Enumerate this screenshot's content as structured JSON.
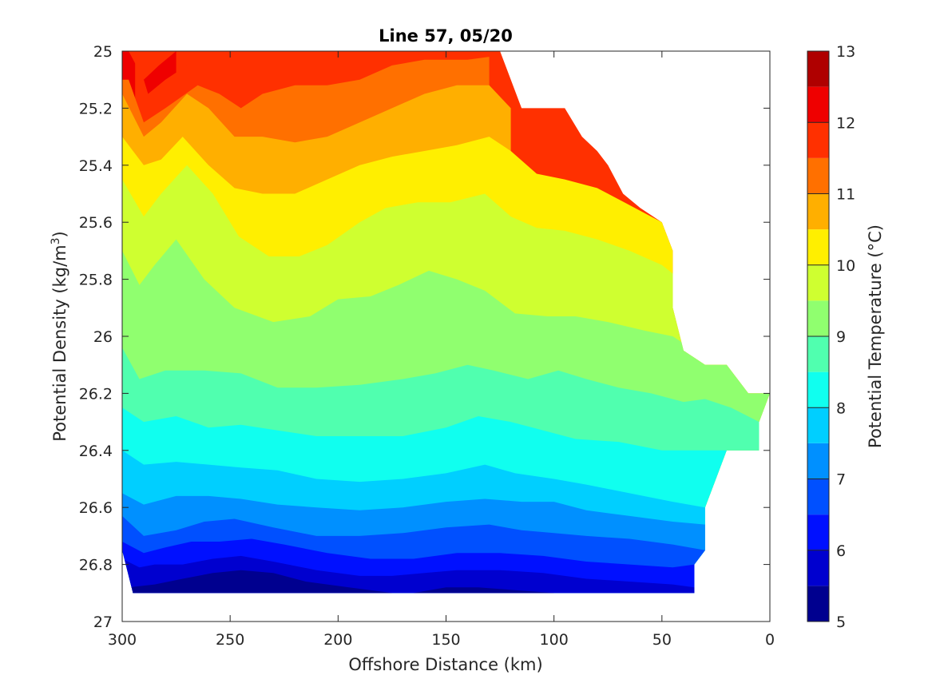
{
  "chart_data": {
    "type": "contour",
    "title": "Line 57, 05/20",
    "xlabel": "Offshore Distance (km)",
    "ylabel_main": "Potential Density (kg/m",
    "ylabel_sup": "3",
    "ylabel_end": ")",
    "xlim": [
      300,
      0
    ],
    "x_reversed": true,
    "ylim": [
      25,
      27
    ],
    "y_reversed": true,
    "x_ticks": [
      300,
      250,
      200,
      150,
      100,
      50,
      0
    ],
    "x_tick_labels": [
      "300",
      "250",
      "200",
      "150",
      "100",
      "50",
      "0"
    ],
    "y_ticks": [
      25,
      25.2,
      25.4,
      25.6,
      25.8,
      26,
      26.2,
      26.4,
      26.6,
      26.8,
      27
    ],
    "y_tick_labels": [
      "25",
      "25.2",
      "25.4",
      "25.6",
      "25.8",
      "26",
      "26.2",
      "26.4",
      "26.6",
      "26.8",
      "27"
    ],
    "colorbar": {
      "label": "Potential Temperature (°C)",
      "limits": [
        5,
        13
      ],
      "tick_values": [
        5,
        6,
        7,
        8,
        9,
        10,
        11,
        12,
        13
      ],
      "tick_labels": [
        "5",
        "6",
        "7",
        "8",
        "9",
        "10",
        "11",
        "12",
        "13"
      ],
      "levels": [
        5,
        5.5,
        6,
        6.5,
        7,
        7.5,
        8,
        8.5,
        9,
        9.5,
        10,
        10.5,
        11,
        11.5,
        12,
        12.5,
        13
      ],
      "colors": [
        "#00008f",
        "#0000cf",
        "#0010ff",
        "#0050ff",
        "#0090ff",
        "#00cfff",
        "#10ffef",
        "#50ffaf",
        "#90ff6f",
        "#cfff30",
        "#ffef00",
        "#ffaf00",
        "#ff7000",
        "#ff3000",
        "#ef0000",
        "#af0000"
      ]
    },
    "data_domain": {
      "x_range": [
        300,
        0
      ],
      "bottom_density": 26.9,
      "top_edge": [
        [
          300,
          25
        ],
        [
          125,
          25
        ],
        [
          115,
          25.2
        ],
        [
          95,
          25.2
        ],
        [
          87,
          25.3
        ],
        [
          80,
          25.35
        ],
        [
          75,
          25.4
        ],
        [
          68,
          25.5
        ],
        [
          60,
          25.55
        ],
        [
          50,
          25.6
        ],
        [
          45,
          25.7
        ],
        [
          45,
          25.9
        ],
        [
          40,
          26.05
        ],
        [
          30,
          26.1
        ],
        [
          20,
          26.1
        ],
        [
          10,
          26.2
        ],
        [
          0,
          26.2
        ]
      ],
      "right_edge": [
        [
          0,
          26.2
        ],
        [
          5,
          26.3
        ],
        [
          5,
          26.4
        ],
        [
          20,
          26.4
        ],
        [
          30,
          26.6
        ],
        [
          30,
          26.75
        ],
        [
          35,
          26.8
        ],
        [
          35,
          26.9
        ]
      ],
      "left_edge": [
        [
          295,
          26.9
        ],
        [
          300,
          26.75
        ],
        [
          300,
          25
        ]
      ]
    },
    "isotherms": [
      {
        "level": 12.5,
        "points": [
          [
            297,
            25
          ],
          [
            290,
            25.1
          ],
          [
            283,
            25.05
          ],
          [
            275,
            25
          ]
        ]
      },
      {
        "level": 12,
        "points": [
          [
            294,
            25
          ],
          [
            288,
            25.15
          ],
          [
            280,
            25.1
          ],
          [
            270,
            25.05
          ],
          [
            255,
            25.05
          ],
          [
            240,
            25.05
          ],
          [
            220,
            25.05
          ],
          [
            200,
            25.04
          ],
          [
            180,
            25.02
          ],
          [
            160,
            25.0
          ]
        ]
      },
      {
        "level": 11.5,
        "points": [
          [
            297,
            25.1
          ],
          [
            290,
            25.25
          ],
          [
            280,
            25.2
          ],
          [
            265,
            25.12
          ],
          [
            255,
            25.15
          ],
          [
            245,
            25.2
          ],
          [
            235,
            25.15
          ],
          [
            220,
            25.12
          ],
          [
            205,
            25.12
          ],
          [
            190,
            25.1
          ],
          [
            175,
            25.05
          ],
          [
            160,
            25.03
          ],
          [
            140,
            25.03
          ],
          [
            130,
            25.02
          ]
        ]
      },
      {
        "level": 11,
        "points": [
          [
            300,
            25.15
          ],
          [
            290,
            25.3
          ],
          [
            282,
            25.25
          ],
          [
            270,
            25.15
          ],
          [
            260,
            25.2
          ],
          [
            248,
            25.3
          ],
          [
            235,
            25.3
          ],
          [
            220,
            25.32
          ],
          [
            205,
            25.3
          ],
          [
            190,
            25.25
          ],
          [
            175,
            25.2
          ],
          [
            160,
            25.15
          ],
          [
            145,
            25.12
          ],
          [
            130,
            25.12
          ],
          [
            120,
            25.2
          ]
        ]
      },
      {
        "level": 10.5,
        "points": [
          [
            300,
            25.3
          ],
          [
            290,
            25.4
          ],
          [
            282,
            25.38
          ],
          [
            272,
            25.3
          ],
          [
            260,
            25.4
          ],
          [
            248,
            25.48
          ],
          [
            235,
            25.5
          ],
          [
            220,
            25.5
          ],
          [
            205,
            25.45
          ],
          [
            190,
            25.4
          ],
          [
            175,
            25.37
          ],
          [
            160,
            25.35
          ],
          [
            145,
            25.33
          ],
          [
            130,
            25.3
          ],
          [
            120,
            25.35
          ],
          [
            108,
            25.43
          ],
          [
            95,
            25.45
          ],
          [
            80,
            25.48
          ],
          [
            70,
            25.52
          ],
          [
            55,
            25.58
          ],
          [
            45,
            25.62
          ]
        ]
      },
      {
        "level": 10,
        "points": [
          [
            300,
            25.45
          ],
          [
            290,
            25.58
          ],
          [
            282,
            25.5
          ],
          [
            270,
            25.4
          ],
          [
            258,
            25.5
          ],
          [
            246,
            25.65
          ],
          [
            232,
            25.72
          ],
          [
            218,
            25.72
          ],
          [
            205,
            25.68
          ],
          [
            190,
            25.6
          ],
          [
            178,
            25.55
          ],
          [
            163,
            25.53
          ],
          [
            148,
            25.53
          ],
          [
            132,
            25.5
          ],
          [
            120,
            25.58
          ],
          [
            108,
            25.62
          ],
          [
            95,
            25.63
          ],
          [
            80,
            25.66
          ],
          [
            65,
            25.7
          ],
          [
            50,
            25.75
          ],
          [
            45,
            25.78
          ]
        ]
      },
      {
        "level": 9.5,
        "points": [
          [
            300,
            25.7
          ],
          [
            292,
            25.82
          ],
          [
            285,
            25.75
          ],
          [
            275,
            25.66
          ],
          [
            262,
            25.8
          ],
          [
            248,
            25.9
          ],
          [
            230,
            25.95
          ],
          [
            213,
            25.93
          ],
          [
            200,
            25.87
          ],
          [
            185,
            25.86
          ],
          [
            172,
            25.82
          ],
          [
            158,
            25.77
          ],
          [
            145,
            25.8
          ],
          [
            132,
            25.84
          ],
          [
            118,
            25.92
          ],
          [
            103,
            25.93
          ],
          [
            90,
            25.93
          ],
          [
            75,
            25.95
          ],
          [
            58,
            25.98
          ],
          [
            45,
            26.0
          ],
          [
            35,
            26.05
          ]
        ]
      },
      {
        "level": 9,
        "points": [
          [
            300,
            26.04
          ],
          [
            292,
            26.15
          ],
          [
            280,
            26.12
          ],
          [
            262,
            26.12
          ],
          [
            245,
            26.13
          ],
          [
            228,
            26.18
          ],
          [
            210,
            26.18
          ],
          [
            190,
            26.17
          ],
          [
            170,
            26.15
          ],
          [
            155,
            26.13
          ],
          [
            140,
            26.1
          ],
          [
            128,
            26.12
          ],
          [
            112,
            26.15
          ],
          [
            98,
            26.12
          ],
          [
            85,
            26.15
          ],
          [
            70,
            26.18
          ],
          [
            55,
            26.2
          ],
          [
            40,
            26.23
          ],
          [
            30,
            26.22
          ],
          [
            18,
            26.25
          ],
          [
            5,
            26.3
          ]
        ]
      },
      {
        "level": 8.5,
        "points": [
          [
            300,
            26.25
          ],
          [
            290,
            26.3
          ],
          [
            275,
            26.28
          ],
          [
            260,
            26.32
          ],
          [
            245,
            26.31
          ],
          [
            228,
            26.33
          ],
          [
            210,
            26.35
          ],
          [
            190,
            26.35
          ],
          [
            170,
            26.35
          ],
          [
            150,
            26.32
          ],
          [
            135,
            26.28
          ],
          [
            120,
            26.3
          ],
          [
            105,
            26.33
          ],
          [
            90,
            26.36
          ],
          [
            70,
            26.37
          ],
          [
            50,
            26.4
          ],
          [
            30,
            26.4
          ],
          [
            20,
            26.4
          ]
        ]
      },
      {
        "level": 8,
        "points": [
          [
            300,
            26.4
          ],
          [
            290,
            26.45
          ],
          [
            275,
            26.44
          ],
          [
            260,
            26.45
          ],
          [
            245,
            26.46
          ],
          [
            228,
            26.47
          ],
          [
            210,
            26.5
          ],
          [
            190,
            26.51
          ],
          [
            170,
            26.5
          ],
          [
            150,
            26.48
          ],
          [
            132,
            26.45
          ],
          [
            118,
            26.48
          ],
          [
            100,
            26.5
          ],
          [
            85,
            26.52
          ],
          [
            65,
            26.55
          ],
          [
            45,
            26.58
          ],
          [
            30,
            26.6
          ]
        ]
      },
      {
        "level": 7.5,
        "points": [
          [
            300,
            26.55
          ],
          [
            290,
            26.59
          ],
          [
            275,
            26.56
          ],
          [
            260,
            26.56
          ],
          [
            245,
            26.57
          ],
          [
            228,
            26.59
          ],
          [
            210,
            26.6
          ],
          [
            190,
            26.61
          ],
          [
            170,
            26.6
          ],
          [
            150,
            26.58
          ],
          [
            132,
            26.57
          ],
          [
            115,
            26.58
          ],
          [
            100,
            26.58
          ],
          [
            85,
            26.61
          ],
          [
            65,
            26.63
          ],
          [
            45,
            26.65
          ],
          [
            30,
            26.66
          ]
        ]
      },
      {
        "level": 7,
        "points": [
          [
            300,
            26.63
          ],
          [
            290,
            26.7
          ],
          [
            275,
            26.68
          ],
          [
            262,
            26.65
          ],
          [
            248,
            26.64
          ],
          [
            230,
            26.67
          ],
          [
            210,
            26.7
          ],
          [
            190,
            26.7
          ],
          [
            170,
            26.69
          ],
          [
            150,
            26.67
          ],
          [
            130,
            26.66
          ],
          [
            115,
            26.68
          ],
          [
            100,
            26.69
          ],
          [
            85,
            26.7
          ],
          [
            65,
            26.71
          ],
          [
            45,
            26.73
          ],
          [
            30,
            26.75
          ]
        ]
      },
      {
        "level": 6.5,
        "points": [
          [
            300,
            26.72
          ],
          [
            290,
            26.76
          ],
          [
            280,
            26.74
          ],
          [
            268,
            26.72
          ],
          [
            255,
            26.72
          ],
          [
            240,
            26.71
          ],
          [
            225,
            26.73
          ],
          [
            205,
            26.76
          ],
          [
            185,
            26.78
          ],
          [
            165,
            26.78
          ],
          [
            145,
            26.76
          ],
          [
            125,
            26.76
          ],
          [
            105,
            26.77
          ],
          [
            85,
            26.79
          ],
          [
            65,
            26.8
          ],
          [
            45,
            26.81
          ],
          [
            35,
            26.8
          ]
        ]
      },
      {
        "level": 6,
        "points": [
          [
            300,
            26.78
          ],
          [
            292,
            26.81
          ],
          [
            285,
            26.8
          ],
          [
            272,
            26.8
          ],
          [
            258,
            26.78
          ],
          [
            245,
            26.77
          ],
          [
            230,
            26.79
          ],
          [
            210,
            26.82
          ],
          [
            190,
            26.84
          ],
          [
            175,
            26.84
          ],
          [
            160,
            26.83
          ],
          [
            145,
            26.82
          ],
          [
            125,
            26.82
          ],
          [
            105,
            26.83
          ],
          [
            85,
            26.85
          ],
          [
            65,
            26.86
          ],
          [
            45,
            26.87
          ],
          [
            35,
            26.88
          ]
        ]
      },
      {
        "level": 5.5,
        "points": [
          [
            297,
            26.88
          ],
          [
            285,
            26.87
          ],
          [
            272,
            26.85
          ],
          [
            258,
            26.83
          ],
          [
            245,
            26.82
          ],
          [
            230,
            26.83
          ],
          [
            215,
            26.86
          ],
          [
            195,
            26.88
          ],
          [
            175,
            26.9
          ]
        ]
      },
      {
        "level": 5.5,
        "points": [
          [
            165,
            26.9
          ],
          [
            150,
            26.88
          ],
          [
            135,
            26.88
          ],
          [
            118,
            26.89
          ],
          [
            100,
            26.9
          ]
        ]
      }
    ]
  }
}
